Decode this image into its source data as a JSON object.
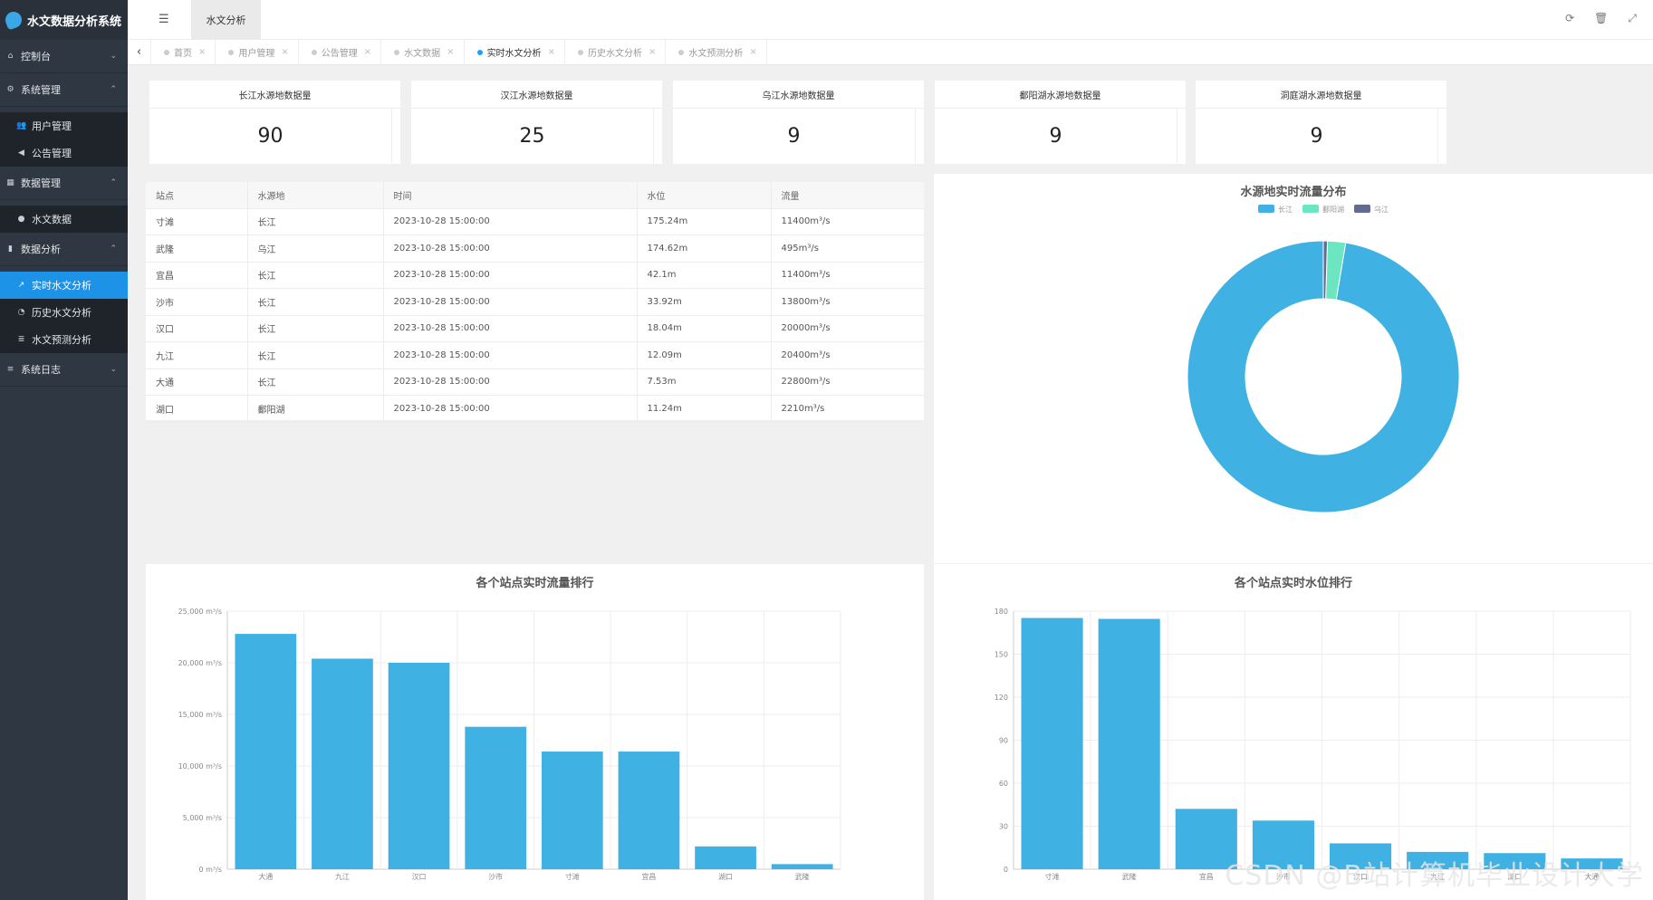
{
  "app": {
    "title": "水文数据分析系统"
  },
  "sidebar": {
    "items": [
      {
        "label": "控制台",
        "icon": "home-icon",
        "type": "group",
        "chevron": "down"
      },
      {
        "label": "系统管理",
        "icon": "cogs-icon",
        "type": "group",
        "chevron": "up"
      },
      {
        "label": "用户管理",
        "icon": "users-icon",
        "type": "sub"
      },
      {
        "label": "公告管理",
        "icon": "volume-icon",
        "type": "sub"
      },
      {
        "label": "数据管理",
        "icon": "table-icon",
        "type": "group",
        "chevron": "up"
      },
      {
        "label": "水文数据",
        "icon": "globe-icon",
        "type": "sub"
      },
      {
        "label": "数据分析",
        "icon": "bar-chart-icon",
        "type": "group",
        "chevron": "up"
      },
      {
        "label": "实时水文分析",
        "icon": "line-chart-icon",
        "type": "sub",
        "active": true
      },
      {
        "label": "历史水文分析",
        "icon": "pie-chart-icon",
        "type": "sub"
      },
      {
        "label": "水文预测分析",
        "icon": "database-icon",
        "type": "sub"
      },
      {
        "label": "系统日志",
        "icon": "list-icon",
        "type": "group",
        "chevron": "down"
      }
    ]
  },
  "header": {
    "tab_label": "水文分析"
  },
  "tabs": [
    {
      "label": "首页",
      "active": false
    },
    {
      "label": "用户管理",
      "active": false
    },
    {
      "label": "公告管理",
      "active": false
    },
    {
      "label": "水文数据",
      "active": false
    },
    {
      "label": "实时水文分析",
      "active": true
    },
    {
      "label": "历史水文分析",
      "active": false
    },
    {
      "label": "水文预测分析",
      "active": false
    }
  ],
  "cards": [
    {
      "title": "长江水源地数据量",
      "value": "90"
    },
    {
      "title": "汉江水源地数据量",
      "value": "25"
    },
    {
      "title": "乌江水源地数据量",
      "value": "9"
    },
    {
      "title": "鄱阳湖水源地数据量",
      "value": "9"
    },
    {
      "title": "洞庭湖水源地数据量",
      "value": "9"
    }
  ],
  "table": {
    "headers": [
      "站点",
      "水源地",
      "时间",
      "水位",
      "流量"
    ],
    "rows": [
      [
        "寸滩",
        "长江",
        "2023-10-28 15:00:00",
        "175.24m",
        "11400m³/s"
      ],
      [
        "武隆",
        "乌江",
        "2023-10-28 15:00:00",
        "174.62m",
        "495m³/s"
      ],
      [
        "宜昌",
        "长江",
        "2023-10-28 15:00:00",
        "42.1m",
        "11400m³/s"
      ],
      [
        "沙市",
        "长江",
        "2023-10-28 15:00:00",
        "33.92m",
        "13800m³/s"
      ],
      [
        "汉口",
        "长江",
        "2023-10-28 15:00:00",
        "18.04m",
        "20000m³/s"
      ],
      [
        "九江",
        "长江",
        "2023-10-28 15:00:00",
        "12.09m",
        "20400m³/s"
      ],
      [
        "大通",
        "长江",
        "2023-10-28 15:00:00",
        "7.53m",
        "22800m³/s"
      ],
      [
        "湖口",
        "鄱阳湖",
        "2023-10-28 15:00:00",
        "11.24m",
        "2210m³/s"
      ]
    ]
  },
  "chart_data": [
    {
      "type": "pie",
      "title": "水源地实时流量分布",
      "legend": "top-center",
      "donut": true,
      "categories": [
        "长江",
        "鄱阳湖",
        "乌江"
      ],
      "values": [
        99800,
        2210,
        495
      ],
      "colors": [
        "#3fb1e3",
        "#6be6c1",
        "#626c91"
      ]
    },
    {
      "type": "bar",
      "title": "各个站点实时流量排行",
      "categories": [
        "大通",
        "九江",
        "汉口",
        "沙市",
        "寸滩",
        "宜昌",
        "湖口",
        "武隆"
      ],
      "values": [
        22800,
        20400,
        20000,
        13800,
        11400,
        11400,
        2210,
        495
      ],
      "ylim": [
        0,
        25000
      ],
      "yticks": [
        "0 m³/s",
        "5,000 m³/s",
        "10,000 m³/s",
        "15,000 m³/s",
        "20,000 m³/s",
        "25,000 m³/s"
      ],
      "grid": true,
      "color": "#3fb1e3"
    },
    {
      "type": "bar",
      "title": "各个站点实时水位排行",
      "categories": [
        "寸滩",
        "武隆",
        "宜昌",
        "沙市",
        "汉口",
        "九江",
        "湖口",
        "大通"
      ],
      "values": [
        175.24,
        174.62,
        42.1,
        33.92,
        18.04,
        12.09,
        11.24,
        7.53
      ],
      "ylim": [
        0,
        180
      ],
      "yticks": [
        "0",
        "30",
        "60",
        "90",
        "120",
        "150",
        "180"
      ],
      "grid": true,
      "color": "#3fb1e3"
    }
  ],
  "watermark": "CSDN @B站计算机毕业设计大学"
}
